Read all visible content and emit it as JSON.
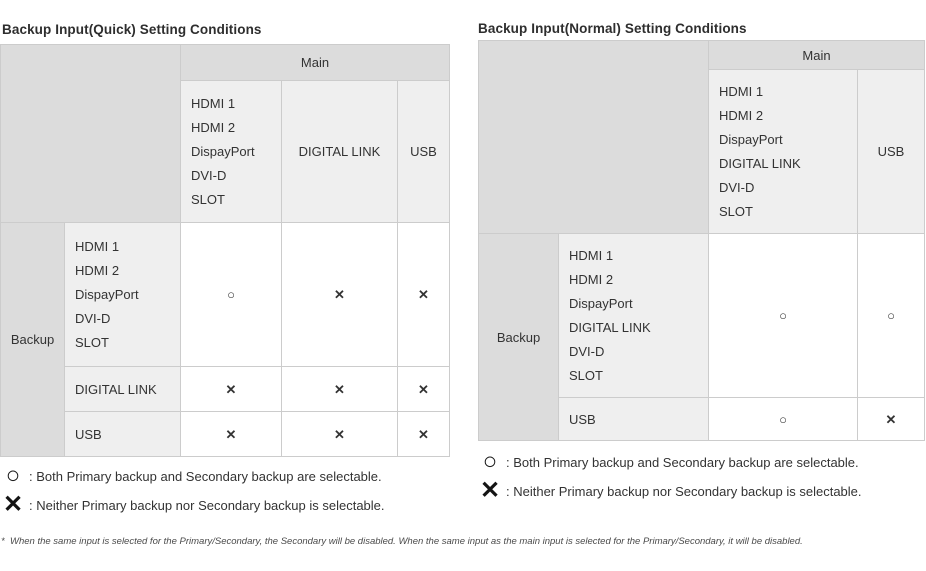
{
  "left_table": {
    "title": "Backup Input(Quick) Setting Conditions",
    "main_header": "Main",
    "backup_header": "Backup",
    "col_headers": [
      "HDMI 1\nHDMI 2\nDispayPort\nDVI-D\nSLOT",
      "DIGITAL LINK",
      "USB"
    ],
    "rows": [
      {
        "label": "HDMI 1\nHDMI 2\nDispayPort\nDVI-D\nSLOT",
        "cells": [
          "○",
          "✕",
          "✕"
        ]
      },
      {
        "label": "DIGITAL LINK",
        "cells": [
          "✕",
          "✕",
          "✕"
        ]
      },
      {
        "label": "USB",
        "cells": [
          "✕",
          "✕",
          "✕"
        ]
      }
    ],
    "legend": [
      {
        "symbol": "○",
        "text": ": Both Primary backup and Secondary backup are selectable."
      },
      {
        "symbol": "✕",
        "text": ": Neither Primary backup nor Secondary backup is selectable."
      }
    ]
  },
  "right_table": {
    "title": "Backup Input(Normal) Setting Conditions",
    "main_header": "Main",
    "backup_header": "Backup",
    "col_headers": [
      "HDMI 1\nHDMI 2\nDispayPort\nDIGITAL LINK\nDVI-D\nSLOT",
      "USB"
    ],
    "rows": [
      {
        "label": "HDMI 1\nHDMI 2\nDispayPort\nDIGITAL LINK\nDVI-D\nSLOT",
        "cells": [
          "○",
          "○"
        ]
      },
      {
        "label": "USB",
        "cells": [
          "○",
          "✕"
        ]
      }
    ],
    "legend": [
      {
        "symbol": "○",
        "text": ": Both Primary backup and Secondary backup are selectable."
      },
      {
        "symbol": "✕",
        "text": ": Neither Primary backup nor Secondary backup is selectable."
      }
    ]
  },
  "page": {
    "footnote_marker": "*",
    "footnote": "When the same input is selected for the Primary/Secondary, the Secondary will be disabled. When the same input as the main input is selected for the Primary/Secondary, it will be disabled."
  }
}
